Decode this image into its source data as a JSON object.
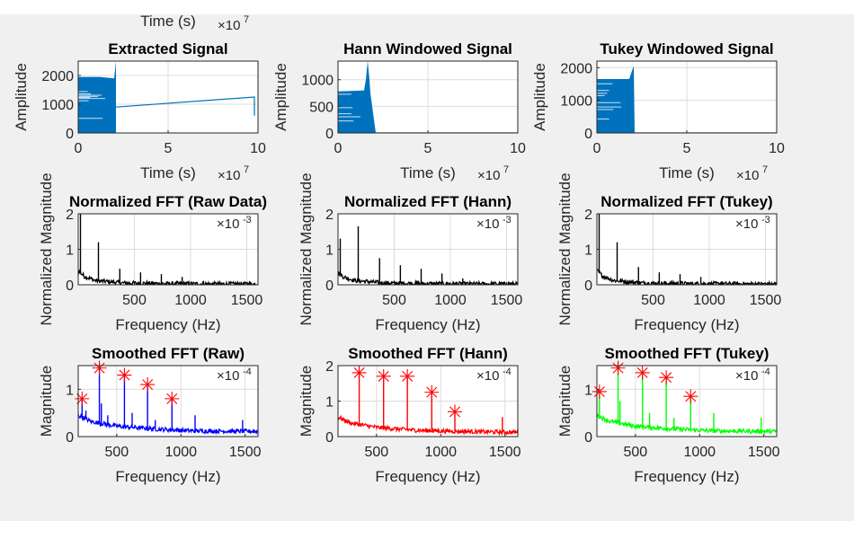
{
  "figure": {
    "background": "#f0f0f0",
    "cropped_top": {
      "xlabel": "Time (s)",
      "x_exponent": "7"
    }
  },
  "chart_data": [
    {
      "type": "line",
      "title": "Extracted Signal",
      "xlabel": "Time (s)",
      "ylabel": "Amplitude",
      "xlim": [
        0,
        10
      ],
      "ylim": [
        0,
        2500
      ],
      "xticks": [
        0,
        5,
        10
      ],
      "yticks": [
        0,
        1000,
        2000
      ],
      "x_exponent": "7",
      "grid": true,
      "color": "#0072bd",
      "envelope": [
        [
          0,
          1950
        ],
        [
          1.2,
          1950
        ],
        [
          2.0,
          1900
        ],
        [
          2.1,
          2500
        ],
        [
          2.1,
          0
        ],
        [
          0,
          0
        ]
      ],
      "line": [
        [
          2.1,
          900
        ],
        [
          9.8,
          1250
        ],
        [
          9.8,
          600
        ]
      ]
    },
    {
      "type": "line",
      "title": "Hann Windowed Signal",
      "xlabel": "Time (s)",
      "ylabel": "Amplitude",
      "xlim": [
        0,
        10
      ],
      "ylim": [
        0,
        1350
      ],
      "xticks": [
        0,
        5,
        10
      ],
      "yticks": [
        0,
        500,
        1000
      ],
      "x_exponent": "7",
      "grid": true,
      "color": "#0072bd",
      "envelope": [
        [
          0,
          780
        ],
        [
          1.45,
          800
        ],
        [
          1.55,
          1000
        ],
        [
          1.65,
          1350
        ],
        [
          1.75,
          1000
        ],
        [
          1.8,
          750
        ],
        [
          2.1,
          0
        ],
        [
          0,
          0
        ]
      ],
      "line": [
        [
          2.1,
          0
        ],
        [
          10,
          0
        ]
      ]
    },
    {
      "type": "line",
      "title": "Tukey Windowed Signal",
      "xlabel": "Time (s)",
      "ylabel": "Amplitude",
      "xlim": [
        0,
        10
      ],
      "ylim": [
        0,
        2200
      ],
      "xticks": [
        0,
        5,
        10
      ],
      "yticks": [
        0,
        1000,
        2000
      ],
      "x_exponent": "7",
      "grid": true,
      "color": "#0072bd",
      "envelope": [
        [
          0,
          1650
        ],
        [
          1.8,
          1650
        ],
        [
          1.95,
          1900
        ],
        [
          2.05,
          2050
        ],
        [
          2.1,
          0
        ],
        [
          0,
          0
        ]
      ],
      "line": [
        [
          2.1,
          0
        ],
        [
          10,
          0
        ]
      ]
    },
    {
      "type": "line",
      "title": "Normalized FFT (Raw Data)",
      "xlabel": "Frequency (Hz)",
      "ylabel": "Normalized Magnitude",
      "xlim": [
        0,
        1600
      ],
      "ylim": [
        0,
        2
      ],
      "xticks": [
        500,
        1000,
        1500
      ],
      "yticks": [
        0,
        1,
        2
      ],
      "y_exponent": "-3",
      "grid": true,
      "color": "#000000",
      "baseline": [
        [
          0,
          0.4
        ],
        [
          50,
          0.25
        ],
        [
          150,
          0.12
        ],
        [
          400,
          0.05
        ],
        [
          800,
          0.03
        ],
        [
          1600,
          0.02
        ]
      ],
      "spikes": [
        [
          20,
          2.0
        ],
        [
          180,
          1.2
        ],
        [
          370,
          0.45
        ],
        [
          555,
          0.35
        ],
        [
          740,
          0.3
        ],
        [
          925,
          0.22
        ],
        [
          1110,
          0.1
        ],
        [
          1480,
          0.05
        ]
      ]
    },
    {
      "type": "line",
      "title": "Normalized FFT (Hann)",
      "xlabel": "Frequency (Hz)",
      "ylabel": "Normalized Magnitude",
      "xlim": [
        0,
        1600
      ],
      "ylim": [
        0,
        2
      ],
      "xticks": [
        500,
        1000,
        1500
      ],
      "yticks": [
        0,
        1,
        2
      ],
      "y_exponent": "-3",
      "grid": true,
      "color": "#000000",
      "baseline": [
        [
          0,
          0.35
        ],
        [
          50,
          0.22
        ],
        [
          150,
          0.12
        ],
        [
          400,
          0.05
        ],
        [
          800,
          0.03
        ],
        [
          1600,
          0.02
        ]
      ],
      "spikes": [
        [
          20,
          1.3
        ],
        [
          180,
          1.65
        ],
        [
          370,
          0.75
        ],
        [
          555,
          0.55
        ],
        [
          740,
          0.45
        ],
        [
          925,
          0.32
        ],
        [
          1110,
          0.18
        ],
        [
          1480,
          0.06
        ]
      ]
    },
    {
      "type": "line",
      "title": "Normalized FFT (Tukey)",
      "xlabel": "Frequency (Hz)",
      "ylabel": "Normalized Magnitude",
      "xlim": [
        0,
        1600
      ],
      "ylim": [
        0,
        2
      ],
      "xticks": [
        500,
        1000,
        1500
      ],
      "yticks": [
        0,
        1,
        2
      ],
      "y_exponent": "-3",
      "grid": true,
      "color": "#000000",
      "baseline": [
        [
          0,
          0.4
        ],
        [
          50,
          0.25
        ],
        [
          150,
          0.12
        ],
        [
          400,
          0.05
        ],
        [
          800,
          0.03
        ],
        [
          1600,
          0.02
        ]
      ],
      "spikes": [
        [
          20,
          2.0
        ],
        [
          180,
          1.2
        ],
        [
          370,
          0.5
        ],
        [
          555,
          0.35
        ],
        [
          740,
          0.3
        ],
        [
          925,
          0.22
        ],
        [
          1110,
          0.1
        ],
        [
          1480,
          0.05
        ]
      ]
    },
    {
      "type": "line",
      "title": "Smoothed FFT (Raw)",
      "xlabel": "Frequency (Hz)",
      "ylabel": "Magnitude",
      "xlim": [
        200,
        1600
      ],
      "ylim": [
        0,
        1.5
      ],
      "xticks": [
        500,
        1000,
        1500
      ],
      "yticks": [
        0,
        1
      ],
      "y_exponent": "-4",
      "grid": true,
      "color": "#0000ff",
      "baseline": [
        [
          200,
          0.45
        ],
        [
          300,
          0.32
        ],
        [
          500,
          0.22
        ],
        [
          800,
          0.16
        ],
        [
          1100,
          0.12
        ],
        [
          1600,
          0.11
        ]
      ],
      "spikes": [
        [
          230,
          0.8
        ],
        [
          260,
          0.55
        ],
        [
          365,
          1.45
        ],
        [
          380,
          0.7
        ],
        [
          430,
          0.45
        ],
        [
          560,
          1.3
        ],
        [
          620,
          0.5
        ],
        [
          740,
          1.1
        ],
        [
          800,
          0.35
        ],
        [
          930,
          0.8
        ],
        [
          1110,
          0.45
        ],
        [
          1480,
          0.35
        ]
      ],
      "peaks": [
        [
          230,
          0.8
        ],
        [
          365,
          1.45
        ],
        [
          560,
          1.3
        ],
        [
          740,
          1.1
        ],
        [
          930,
          0.8
        ]
      ],
      "peak_color": "#ff0000"
    },
    {
      "type": "line",
      "title": "Smoothed FFT (Hann)",
      "xlabel": "Frequency (Hz)",
      "ylabel": "Magnitude",
      "xlim": [
        200,
        1600
      ],
      "ylim": [
        0,
        2
      ],
      "xticks": [
        500,
        1000,
        1500
      ],
      "yticks": [
        0,
        1,
        2
      ],
      "y_exponent": "-4",
      "grid": true,
      "color": "#ff0000",
      "baseline": [
        [
          200,
          0.55
        ],
        [
          300,
          0.38
        ],
        [
          500,
          0.26
        ],
        [
          800,
          0.18
        ],
        [
          1100,
          0.15
        ],
        [
          1600,
          0.12
        ]
      ],
      "spikes": [
        [
          365,
          1.8
        ],
        [
          555,
          1.7
        ],
        [
          740,
          1.7
        ],
        [
          930,
          1.25
        ],
        [
          1110,
          0.7
        ],
        [
          1480,
          0.55
        ]
      ],
      "peaks": [
        [
          365,
          1.8
        ],
        [
          555,
          1.7
        ],
        [
          740,
          1.7
        ],
        [
          930,
          1.25
        ],
        [
          1110,
          0.7
        ]
      ],
      "peak_color": "#ff0000"
    },
    {
      "type": "line",
      "title": "Smoothed FFT (Tukey)",
      "xlabel": "Frequency (Hz)",
      "ylabel": "Magnitude",
      "xlim": [
        200,
        1600
      ],
      "ylim": [
        0,
        1.5
      ],
      "xticks": [
        500,
        1000,
        1500
      ],
      "yticks": [
        0,
        1
      ],
      "y_exponent": "-4",
      "grid": true,
      "color": "#00ff00",
      "baseline": [
        [
          200,
          0.45
        ],
        [
          300,
          0.32
        ],
        [
          500,
          0.22
        ],
        [
          800,
          0.16
        ],
        [
          1100,
          0.12
        ],
        [
          1600,
          0.11
        ]
      ],
      "spikes": [
        [
          220,
          0.95
        ],
        [
          365,
          1.45
        ],
        [
          380,
          0.75
        ],
        [
          555,
          1.35
        ],
        [
          610,
          0.5
        ],
        [
          740,
          1.25
        ],
        [
          800,
          0.4
        ],
        [
          930,
          0.85
        ],
        [
          1110,
          0.5
        ],
        [
          1480,
          0.4
        ]
      ],
      "peaks": [
        [
          220,
          0.95
        ],
        [
          365,
          1.45
        ],
        [
          555,
          1.35
        ],
        [
          740,
          1.25
        ],
        [
          930,
          0.85
        ]
      ],
      "peak_color": "#ff0000"
    }
  ]
}
